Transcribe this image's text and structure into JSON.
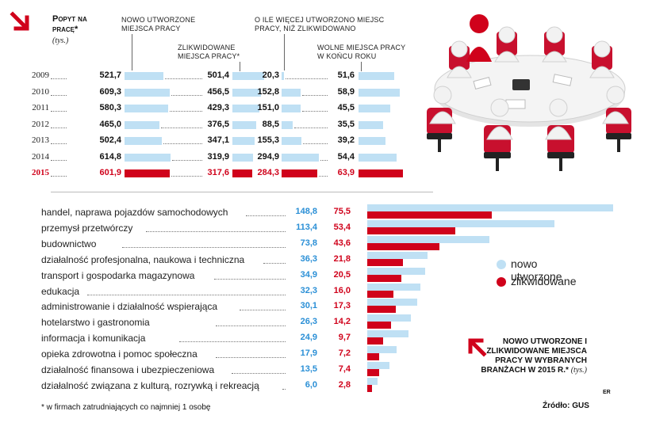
{
  "top": {
    "title_line1": "Popyt na",
    "title_line2": "pracę*",
    "unit": "(tys.)",
    "headers": {
      "new": "NOWO UTWORZONE MIEJSCA PRACY",
      "liquidated": "ZLIKWIDOWANE MIEJSCA PRACY*",
      "diff": "O ILE WIĘCEJ UTWORZONO MIEJSC PRACY, NIŻ ZLIKWIDOWANO",
      "vacancies": "WOLNE MIEJSCA PRACY W KOŃCU ROKU"
    }
  },
  "bottom": {
    "title": "Nowo utworzone i zlikwidowane miejsca pracy w wybranych branżach w 2015 r.*",
    "unit": "(tys.)",
    "footnote": "* w firmach zatrudniających co najmniej 1 osobę",
    "source": "Źródło: GUS",
    "initials": "ER"
  },
  "colors": {
    "light_blue": "#bfe0f4",
    "red": "#d0021b",
    "blue_text": "#2a8fd6"
  },
  "chart_data": [
    {
      "type": "bar",
      "title": "Popyt na pracę*",
      "unit": "(tys.)",
      "categories": [
        "2009",
        "2010",
        "2011",
        "2012",
        "2013",
        "2014",
        "2015"
      ],
      "highlight": "2015",
      "series": [
        {
          "name": "NOWO UTWORZONE MIEJSCA PRACY",
          "values": [
            "521,7",
            "609,3",
            "580,3",
            "465,0",
            "502,4",
            "614,8",
            "601,9"
          ],
          "numeric": [
            521.7,
            609.3,
            580.3,
            465.0,
            502.4,
            614.8,
            601.9
          ]
        },
        {
          "name": "ZLIKWIDOWANE MIEJSCA PRACY*",
          "values": [
            "501,4",
            "456,5",
            "429,3",
            "376,5",
            "347,1",
            "319,9",
            "317,6"
          ],
          "numeric": [
            501.4,
            456.5,
            429.3,
            376.5,
            347.1,
            319.9,
            317.6
          ]
        },
        {
          "name": "O ILE WIĘCEJ UTWORZONO MIEJSC PRACY, NIŻ ZLIKWIDOWANO",
          "values": [
            "20,3",
            "152,8",
            "151,0",
            "88,5",
            "155,3",
            "294,9",
            "284,3"
          ],
          "numeric": [
            20.3,
            152.8,
            151.0,
            88.5,
            155.3,
            294.9,
            284.3
          ]
        },
        {
          "name": "WOLNE MIEJSCA PRACY W KOŃCU ROKU",
          "values": [
            "51,6",
            "58,9",
            "45,5",
            "35,5",
            "39,2",
            "54,4",
            "63,9"
          ],
          "numeric": [
            51.6,
            58.9,
            45.5,
            35.5,
            39.2,
            54.4,
            63.9
          ]
        }
      ]
    },
    {
      "type": "bar",
      "orientation": "horizontal",
      "title": "Nowo utworzone i zlikwidowane miejsca pracy w wybranych branżach w 2015 r.*",
      "unit": "(tys.)",
      "categories": [
        "handel, naprawa pojazdów samochodowych",
        "przemysł przetwórczy",
        "budownictwo",
        "działalność profesjonalna, naukowa i techniczna",
        "transport i gospodarka magazynowa",
        "edukacja",
        "administrowanie i działalność wspierająca",
        "hotelarstwo  i gastronomia",
        "informacja i komunikacja",
        "opieka zdrowotna i pomoc społeczna",
        "działalność finansowa i ubezpieczeniowa",
        "działalność związana z kulturą, rozrywką i rekreacją"
      ],
      "legend": [
        {
          "name": "nowo utworzone",
          "color": "#bfe0f4"
        },
        {
          "name": "zlikwidowane",
          "color": "#d0021b"
        }
      ],
      "series": [
        {
          "name": "nowo utworzone",
          "values": [
            "148,8",
            "113,4",
            "73,8",
            "36,3",
            "34,9",
            "32,3",
            "30,1",
            "26,3",
            "24,9",
            "17,9",
            "13,5",
            "6,0"
          ],
          "numeric": [
            148.8,
            113.4,
            73.8,
            36.3,
            34.9,
            32.3,
            30.1,
            26.3,
            24.9,
            17.9,
            13.5,
            6.0
          ]
        },
        {
          "name": "zlikwidowane",
          "values": [
            "75,5",
            "53,4",
            "43,6",
            "21,8",
            "20,5",
            "16,0",
            "17,3",
            "14,2",
            "9,7",
            "7,2",
            "7,4",
            "2,8"
          ],
          "numeric": [
            75.5,
            53.4,
            43.6,
            21.8,
            20.5,
            16.0,
            17.3,
            14.2,
            9.7,
            7.2,
            7.4,
            2.8
          ]
        }
      ]
    }
  ]
}
